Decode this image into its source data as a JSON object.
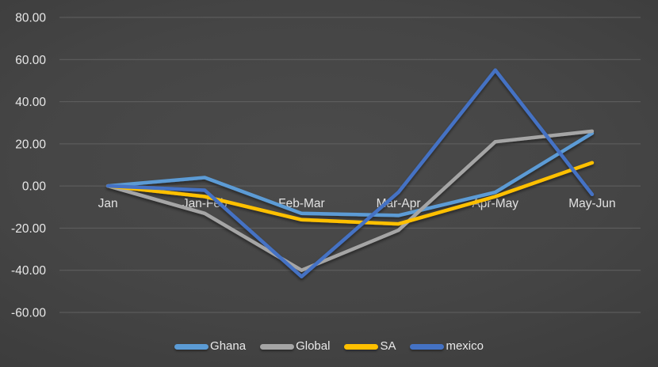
{
  "chart_data": {
    "type": "line",
    "title": "",
    "xlabel": "",
    "ylabel": "",
    "categories": [
      "Jan",
      "Jan-Feb",
      "Feb-Mar",
      "Mar-Apr",
      "Apr-May",
      "May-Jun"
    ],
    "series": [
      {
        "name": "Ghana",
        "color": "#5B9BD5",
        "values": [
          0,
          4,
          -13,
          -14,
          -3,
          25
        ]
      },
      {
        "name": "Global",
        "color": "#A5A5A5",
        "values": [
          0,
          -13,
          -40,
          -21,
          21,
          26
        ]
      },
      {
        "name": "SA",
        "color": "#FFC000",
        "values": [
          0,
          -5,
          -16,
          -18,
          -5,
          11
        ]
      },
      {
        "name": "mexico",
        "color": "#4472C4",
        "values": [
          0,
          -2,
          -43,
          -3,
          55,
          -4
        ]
      }
    ],
    "ylim": [
      -60,
      80
    ],
    "ytick_step": 20,
    "ytick_labels": [
      "80.00",
      "60.00",
      "40.00",
      "20.00",
      "0.00",
      "-20.00",
      "-40.00",
      "-60.00"
    ],
    "grid": true,
    "legend_position": "bottom",
    "background": "#3d3d3d",
    "gridline_color": "#616161",
    "text_color": "#e8e8e8"
  },
  "legend": {
    "items": [
      "Ghana",
      "Global",
      "SA",
      "mexico"
    ]
  }
}
